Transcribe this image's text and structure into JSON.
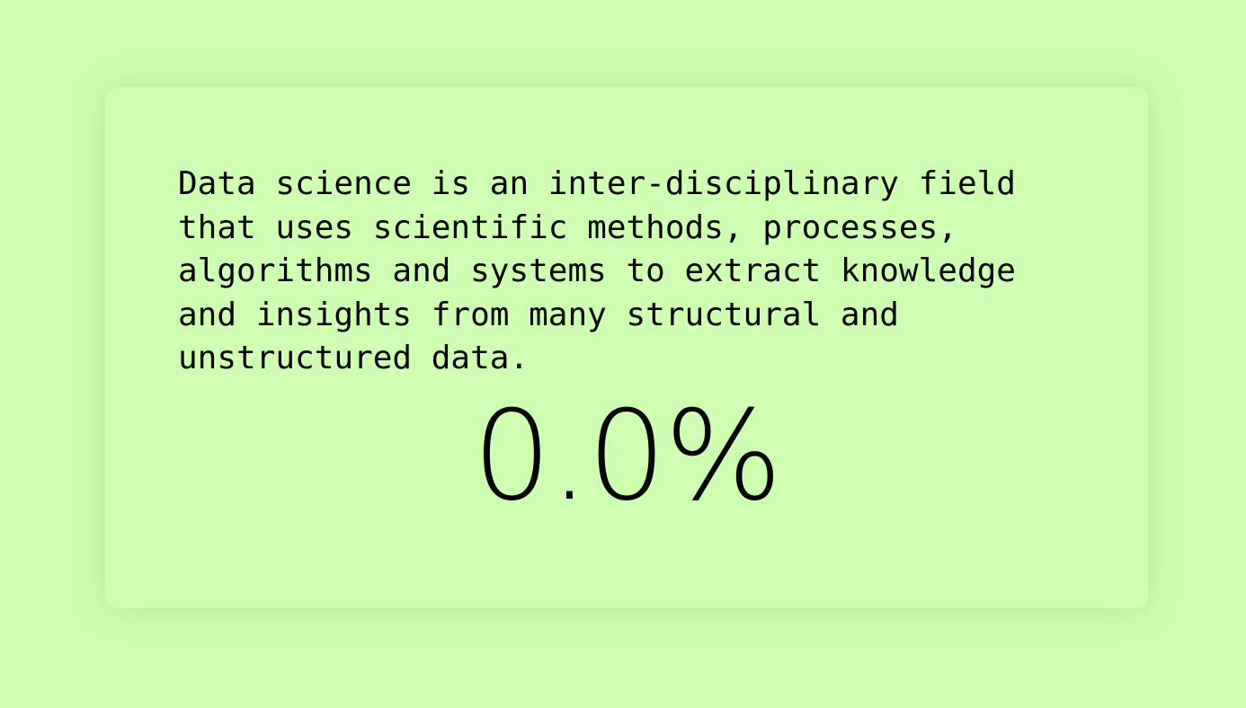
{
  "card": {
    "text": "Data science is an inter-disciplinary field that uses scientific methods, processes, algorithms and systems to extract knowledge and insights from many structural and unstructured data.",
    "percentage": "0.0%"
  },
  "colors": {
    "background": "#cfffb0",
    "text": "#000000"
  }
}
